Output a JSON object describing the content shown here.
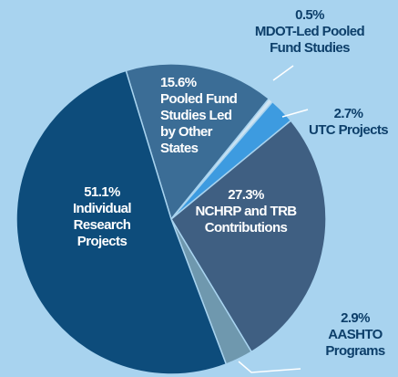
{
  "chart_data": {
    "type": "pie",
    "categories": [
      "Pooled Fund Studies Led by Other States",
      "MDOT-Led Pooled Fund Studies",
      "UTC Projects",
      "NCHRP and TRB Contributions",
      "AASHTO Programs",
      "Individual Research Projects"
    ],
    "values": [
      15.6,
      0.5,
      2.7,
      27.3,
      2.9,
      51.1
    ],
    "value_labels": [
      "15.6%",
      "0.5%",
      "2.7%",
      "27.3%",
      "2.9%",
      "51.1%"
    ],
    "colors": [
      "#3b6d96",
      "#cfe4f2",
      "#3d9be0",
      "#3f5f82",
      "#6f98ae",
      "#0d4c7b"
    ]
  }
}
